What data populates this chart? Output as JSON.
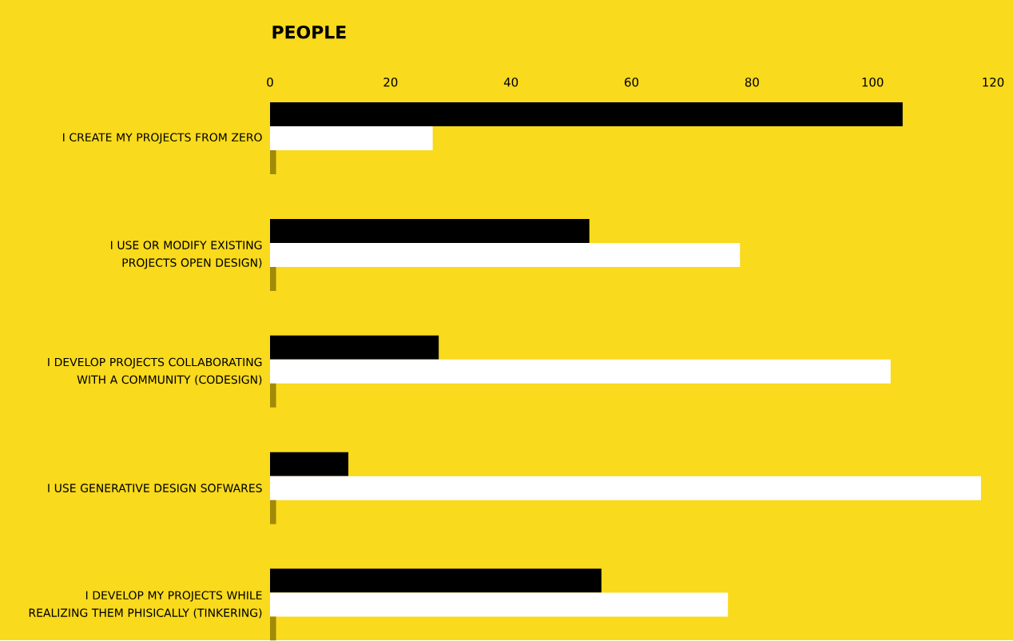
{
  "chart_data": {
    "type": "bar",
    "orientation": "horizontal",
    "xlabel": "PEOPLE",
    "categories": [
      "I CREATE MY PROJECTS FROM ZERO",
      "I USE OR MODIFY EXISTING PROJECTS OPEN DESIGN)",
      "I DEVELOP PROJECTS COLLABORATING WITH A COMMUNITY (CODESIGN)",
      "I USE GENERATIVE DESIGN SOFWARES",
      "I DEVELOP MY PROJECTS WHILE REALIZING THEM PHISICALLY (TINKERING)"
    ],
    "series": [
      {
        "color": "#000000",
        "values": [
          105,
          53,
          28,
          13,
          55
        ]
      },
      {
        "color": "#ffffff",
        "values": [
          27,
          78,
          103,
          118,
          76
        ]
      },
      {
        "color": "#a08a06",
        "values": [
          1,
          1,
          1,
          1,
          1
        ]
      }
    ],
    "xlim": [
      0,
      120
    ],
    "xticks": [
      0,
      20,
      40,
      60,
      80,
      100,
      120
    ],
    "grid": false
  }
}
